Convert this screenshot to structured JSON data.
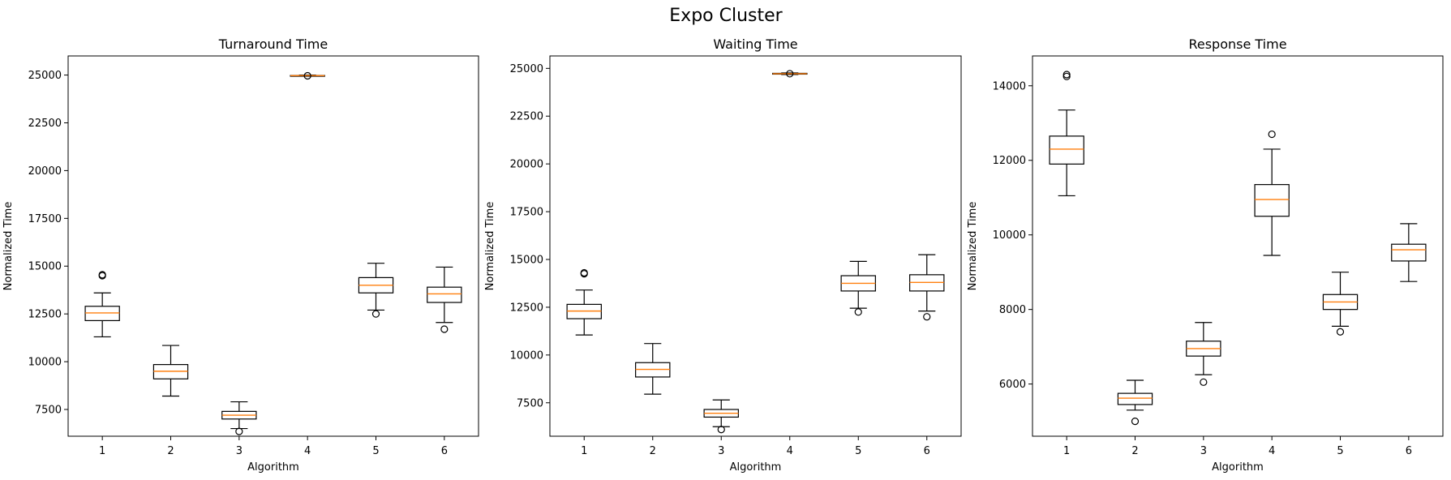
{
  "figure": {
    "title": "Expo Cluster"
  },
  "chart_data": [
    {
      "type": "box",
      "title": "Turnaround Time",
      "xlabel": "Algorithm",
      "ylabel": "Normalized Time",
      "categories": [
        "1",
        "2",
        "3",
        "4",
        "5",
        "6"
      ],
      "ylim": [
        6100,
        26000
      ],
      "yticks": [
        7500,
        10000,
        12500,
        15000,
        17500,
        20000,
        22500,
        25000
      ],
      "ytick_labels": [
        "7500",
        "10000",
        "12500",
        "15000",
        "17500",
        "20000",
        "22500",
        "25000"
      ],
      "boxes": [
        {
          "whislo": 11300,
          "q1": 12150,
          "med": 12550,
          "q3": 12900,
          "whishi": 13600,
          "fliers": [
            14500,
            14550
          ]
        },
        {
          "whislo": 8200,
          "q1": 9100,
          "med": 9500,
          "q3": 9850,
          "whishi": 10850,
          "fliers": []
        },
        {
          "whislo": 6500,
          "q1": 7000,
          "med": 7200,
          "q3": 7400,
          "whishi": 7900,
          "fliers": [
            6350
          ]
        },
        {
          "whislo": 24950,
          "q1": 24950,
          "med": 24970,
          "q3": 24980,
          "whishi": 25000,
          "fliers": [
            24960
          ]
        },
        {
          "whislo": 12700,
          "q1": 13600,
          "med": 14000,
          "q3": 14400,
          "whishi": 15150,
          "fliers": [
            12500
          ]
        },
        {
          "whislo": 12050,
          "q1": 13100,
          "med": 13550,
          "q3": 13900,
          "whishi": 14950,
          "fliers": [
            11700
          ]
        }
      ]
    },
    {
      "type": "box",
      "title": "Waiting Time",
      "xlabel": "Algorithm",
      "ylabel": "Normalized Time",
      "categories": [
        "1",
        "2",
        "3",
        "4",
        "5",
        "6"
      ],
      "ylim": [
        5750,
        25650
      ],
      "yticks": [
        7500,
        10000,
        12500,
        15000,
        17500,
        20000,
        22500,
        25000
      ],
      "ytick_labels": [
        "7500",
        "10000",
        "12500",
        "15000",
        "17500",
        "20000",
        "22500",
        "25000"
      ],
      "boxes": [
        {
          "whislo": 11050,
          "q1": 11900,
          "med": 12300,
          "q3": 12650,
          "whishi": 13400,
          "fliers": [
            14250,
            14300
          ]
        },
        {
          "whislo": 7950,
          "q1": 8850,
          "med": 9250,
          "q3": 9600,
          "whishi": 10600,
          "fliers": []
        },
        {
          "whislo": 6250,
          "q1": 6750,
          "med": 6950,
          "q3": 7150,
          "whishi": 7650,
          "fliers": [
            6100
          ]
        },
        {
          "whislo": 24680,
          "q1": 24700,
          "med": 24720,
          "q3": 24740,
          "whishi": 24760,
          "fliers": [
            24720
          ]
        },
        {
          "whislo": 12450,
          "q1": 13350,
          "med": 13750,
          "q3": 14150,
          "whishi": 14900,
          "fliers": [
            12250
          ]
        },
        {
          "whislo": 12300,
          "q1": 13350,
          "med": 13800,
          "q3": 14200,
          "whishi": 15250,
          "fliers": [
            12000
          ]
        }
      ]
    },
    {
      "type": "box",
      "title": "Response Time",
      "xlabel": "Algorithm",
      "ylabel": "Normalized Time",
      "categories": [
        "1",
        "2",
        "3",
        "4",
        "5",
        "6"
      ],
      "ylim": [
        4600,
        14800
      ],
      "yticks": [
        6000,
        8000,
        10000,
        12000,
        14000
      ],
      "ytick_labels": [
        "6000",
        "8000",
        "10000",
        "12000",
        "14000"
      ],
      "boxes": [
        {
          "whislo": 11050,
          "q1": 11900,
          "med": 12300,
          "q3": 12650,
          "whishi": 13350,
          "fliers": [
            14250,
            14300
          ]
        },
        {
          "whislo": 5300,
          "q1": 5450,
          "med": 5620,
          "q3": 5750,
          "whishi": 6100,
          "fliers": [
            5000
          ]
        },
        {
          "whislo": 6250,
          "q1": 6750,
          "med": 6950,
          "q3": 7150,
          "whishi": 7650,
          "fliers": [
            6050
          ]
        },
        {
          "whislo": 9450,
          "q1": 10500,
          "med": 10950,
          "q3": 11350,
          "whishi": 12300,
          "fliers": [
            12700
          ]
        },
        {
          "whislo": 7550,
          "q1": 8000,
          "med": 8200,
          "q3": 8400,
          "whishi": 9000,
          "fliers": [
            7400
          ]
        },
        {
          "whislo": 8750,
          "q1": 9300,
          "med": 9600,
          "q3": 9750,
          "whishi": 10300,
          "fliers": []
        }
      ]
    }
  ],
  "colors": {
    "box": "#000000",
    "median": "#ff7f0e",
    "background": "#ffffff"
  }
}
